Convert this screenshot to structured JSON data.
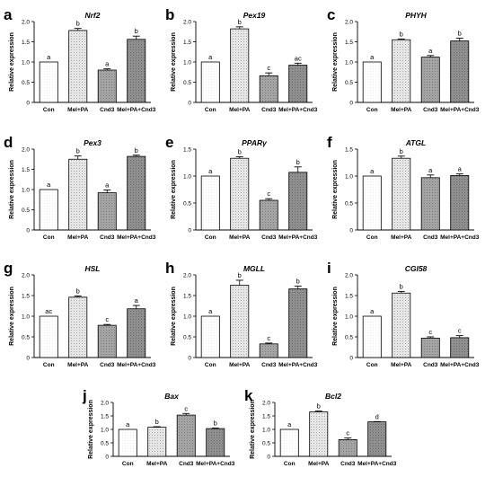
{
  "chart_data": [
    {
      "panel_letter": "a",
      "title": "Nrf2",
      "type": "bar",
      "ylabel": "Relative expression",
      "ylim": [
        0,
        2.0
      ],
      "yticks": [
        "0",
        "0.5",
        "1.0",
        "1.5",
        "2.0"
      ],
      "categories": [
        "Con",
        "Mel+PA",
        "Cnd3",
        "Mel+PA+Cnd3"
      ],
      "values": [
        1.0,
        1.78,
        0.8,
        1.56
      ],
      "errors": [
        0.0,
        0.05,
        0.03,
        0.08
      ],
      "labels": [
        "a",
        "b",
        "a",
        "b"
      ],
      "fills": [
        "white",
        "lightdot",
        "midgrey",
        "darkgrey"
      ]
    },
    {
      "panel_letter": "b",
      "title": "Pex19",
      "type": "bar",
      "ylabel": "Relative expression",
      "ylim": [
        0,
        2.0
      ],
      "yticks": [
        "0",
        "0.5",
        "1.0",
        "1.5",
        "2.0"
      ],
      "categories": [
        "Con",
        "Mel+PA",
        "Cnd3",
        "Mel+PA+Cnd3"
      ],
      "values": [
        1.0,
        1.82,
        0.66,
        0.92
      ],
      "errors": [
        0.0,
        0.05,
        0.07,
        0.05
      ],
      "labels": [
        "a",
        "b",
        "c",
        "ac"
      ],
      "fills": [
        "white",
        "lightdot",
        "midgrey",
        "darkgrey"
      ]
    },
    {
      "panel_letter": "c",
      "title": "PHYH",
      "type": "bar",
      "ylabel": "Relative expression",
      "ylim": [
        0,
        2.0
      ],
      "yticks": [
        "0",
        "0.5",
        "1.0",
        "1.5",
        "2.0"
      ],
      "categories": [
        "Con",
        "Mel+PA",
        "Cnd3",
        "Mel+PA+Cnd3"
      ],
      "values": [
        1.0,
        1.55,
        1.12,
        1.52
      ],
      "errors": [
        0.0,
        0.02,
        0.04,
        0.07
      ],
      "labels": [
        "a",
        "b",
        "a",
        "b"
      ],
      "fills": [
        "white",
        "lightdot",
        "midgrey",
        "darkgrey"
      ]
    },
    {
      "panel_letter": "d",
      "title": "Pex3",
      "type": "bar",
      "ylabel": "Relative expression",
      "ylim": [
        0,
        2.0
      ],
      "yticks": [
        "0",
        "0.5",
        "1.0",
        "1.5",
        "2.0"
      ],
      "categories": [
        "Con",
        "Mel+PA",
        "Cnd3",
        "Mel+PA+Cnd3"
      ],
      "values": [
        1.0,
        1.75,
        0.92,
        1.82
      ],
      "errors": [
        0.0,
        0.08,
        0.07,
        0.03
      ],
      "labels": [
        "a",
        "b",
        "a",
        "b"
      ],
      "fills": [
        "white",
        "lightdot",
        "midgrey",
        "darkgrey"
      ]
    },
    {
      "panel_letter": "e",
      "title": "PPARγ",
      "type": "bar",
      "ylabel": "Relative expression",
      "ylim": [
        0,
        1.5
      ],
      "yticks": [
        "0",
        "0.5",
        "1.0",
        "1.5"
      ],
      "categories": [
        "Con",
        "Mel+PA",
        "Cnd3",
        "Mel+PA+Cnd3"
      ],
      "values": [
        1.0,
        1.33,
        0.55,
        1.07
      ],
      "errors": [
        0.0,
        0.03,
        0.03,
        0.1
      ],
      "labels": [
        "a",
        "b",
        "c",
        "b"
      ],
      "fills": [
        "white",
        "lightdot",
        "midgrey",
        "darkgrey"
      ]
    },
    {
      "panel_letter": "f",
      "title": "ATGL",
      "type": "bar",
      "ylabel": "Relative expression",
      "ylim": [
        0,
        1.5
      ],
      "yticks": [
        "0",
        "0.5",
        "1.0",
        "1.5"
      ],
      "categories": [
        "Con",
        "Mel+PA",
        "Cnd3",
        "Mel+PA+Cnd3"
      ],
      "values": [
        1.0,
        1.33,
        0.97,
        1.01
      ],
      "errors": [
        0.0,
        0.04,
        0.05,
        0.03
      ],
      "labels": [
        "a",
        "b",
        "a",
        "a"
      ],
      "fills": [
        "white",
        "lightdot",
        "midgrey",
        "darkgrey"
      ]
    },
    {
      "panel_letter": "g",
      "title": "HSL",
      "type": "bar",
      "ylabel": "Relative expression",
      "ylim": [
        0,
        2.0
      ],
      "yticks": [
        "0",
        "0.5",
        "1.0",
        "1.5",
        "2.0"
      ],
      "categories": [
        "Con",
        "Mel+PA",
        "Cnd3",
        "Mel+PA+Cnd3"
      ],
      "values": [
        1.0,
        1.46,
        0.78,
        1.18
      ],
      "errors": [
        0.0,
        0.03,
        0.02,
        0.08
      ],
      "labels": [
        "ac",
        "b",
        "c",
        "a"
      ],
      "fills": [
        "white",
        "lightdot",
        "midgrey",
        "darkgrey"
      ]
    },
    {
      "panel_letter": "h",
      "title": "MGLL",
      "type": "bar",
      "ylabel": "Relative expression",
      "ylim": [
        0,
        2.0
      ],
      "yticks": [
        "0",
        "0.5",
        "1.0",
        "1.5",
        "2.0"
      ],
      "categories": [
        "Con",
        "Mel+PA",
        "Cnd3",
        "Mel+PA+Cnd3"
      ],
      "values": [
        1.0,
        1.75,
        0.33,
        1.66
      ],
      "errors": [
        0.0,
        0.12,
        0.02,
        0.07
      ],
      "labels": [
        "a",
        "b",
        "c",
        "b"
      ],
      "fills": [
        "white",
        "lightdot",
        "midgrey",
        "darkgrey"
      ]
    },
    {
      "panel_letter": "i",
      "title": "CGI58",
      "type": "bar",
      "ylabel": "Relative expression",
      "ylim": [
        0,
        2.0
      ],
      "yticks": [
        "0",
        "0.5",
        "1.0",
        "1.5",
        "2.0"
      ],
      "categories": [
        "Con",
        "Mel+PA",
        "Cnd3",
        "Mel+PA+Cnd3"
      ],
      "values": [
        1.0,
        1.56,
        0.47,
        0.48
      ],
      "errors": [
        0.0,
        0.04,
        0.03,
        0.05
      ],
      "labels": [
        "a",
        "b",
        "c",
        "c"
      ],
      "fills": [
        "white",
        "lightdot",
        "midgrey",
        "darkgrey"
      ]
    },
    {
      "panel_letter": "j",
      "title": "Bax",
      "type": "bar",
      "ylabel": "Relative expression",
      "ylim": [
        0,
        2.0
      ],
      "yticks": [
        "0",
        "0.5",
        "1.0",
        "1.5",
        "2.0"
      ],
      "categories": [
        "Con",
        "Mel+PA",
        "Cnd3",
        "Mel+PA+Cnd3"
      ],
      "values": [
        1.0,
        1.08,
        1.53,
        1.03
      ],
      "errors": [
        0.0,
        0.02,
        0.06,
        0.02
      ],
      "labels": [
        "a",
        "b",
        "c",
        "b"
      ],
      "fills": [
        "white",
        "lightdot",
        "midgrey",
        "darkgrey"
      ]
    },
    {
      "panel_letter": "k",
      "title": "Bcl2",
      "type": "bar",
      "ylabel": "Relative expression",
      "ylim": [
        0,
        2.0
      ],
      "yticks": [
        "0",
        "0.5",
        "1.0",
        "1.5",
        "2.0"
      ],
      "categories": [
        "Con",
        "Mel+PA",
        "Cnd3",
        "Mel+PA+Cnd3"
      ],
      "values": [
        1.0,
        1.65,
        0.62,
        1.28
      ],
      "errors": [
        0.0,
        0.03,
        0.06,
        0.01
      ],
      "labels": [
        "a",
        "b",
        "c",
        "d"
      ],
      "fills": [
        "white",
        "lightdot",
        "midgrey",
        "darkgrey"
      ]
    }
  ]
}
